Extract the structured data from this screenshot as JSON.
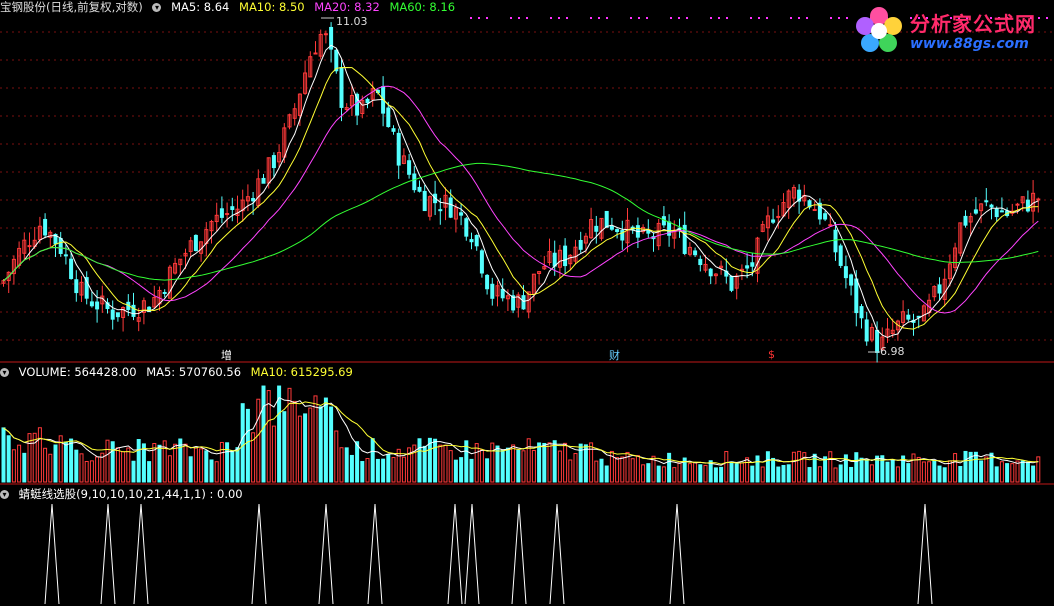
{
  "main_header": {
    "title": "宝钢股份(日线,前复权,对数)",
    "ma5": "MA5: 8.64",
    "ma10": "MA10: 8.50",
    "ma20": "MA20: 8.32",
    "ma60": "MA60: 8.16",
    "colors": {
      "ma5": "#ffffff",
      "ma10": "#ffff33",
      "ma20": "#ff44ff",
      "ma60": "#33ff33"
    }
  },
  "volume_header": {
    "volume": "VOLUME: 564428.00",
    "ma5": "MA5: 570760.56",
    "ma10": "MA10: 615295.69"
  },
  "indicator_header": {
    "text": "蜻蜓线选股(9,10,10,10,21,44,1,1) : 0.00"
  },
  "annotations": {
    "high_label": "11.03",
    "low_label": "6.98",
    "tag_zeng": "增",
    "tag_cai": "财",
    "tag_s": "$"
  },
  "watermark": {
    "title": "分析家公式网",
    "url": "www.88gs.com"
  },
  "chart_data": {
    "type": "candlestick",
    "panels": [
      "price",
      "volume",
      "indicator"
    ],
    "price_high": 11.03,
    "price_low": 6.98,
    "ma_last": {
      "MA5": 8.64,
      "MA10": 8.5,
      "MA20": 8.32,
      "MA60": 8.16
    },
    "volume_last": 564428.0,
    "volume_ma_last": {
      "MA5": 570760.56,
      "MA10": 615295.69
    },
    "indicator_last": 0.0,
    "signal_count": 12
  }
}
